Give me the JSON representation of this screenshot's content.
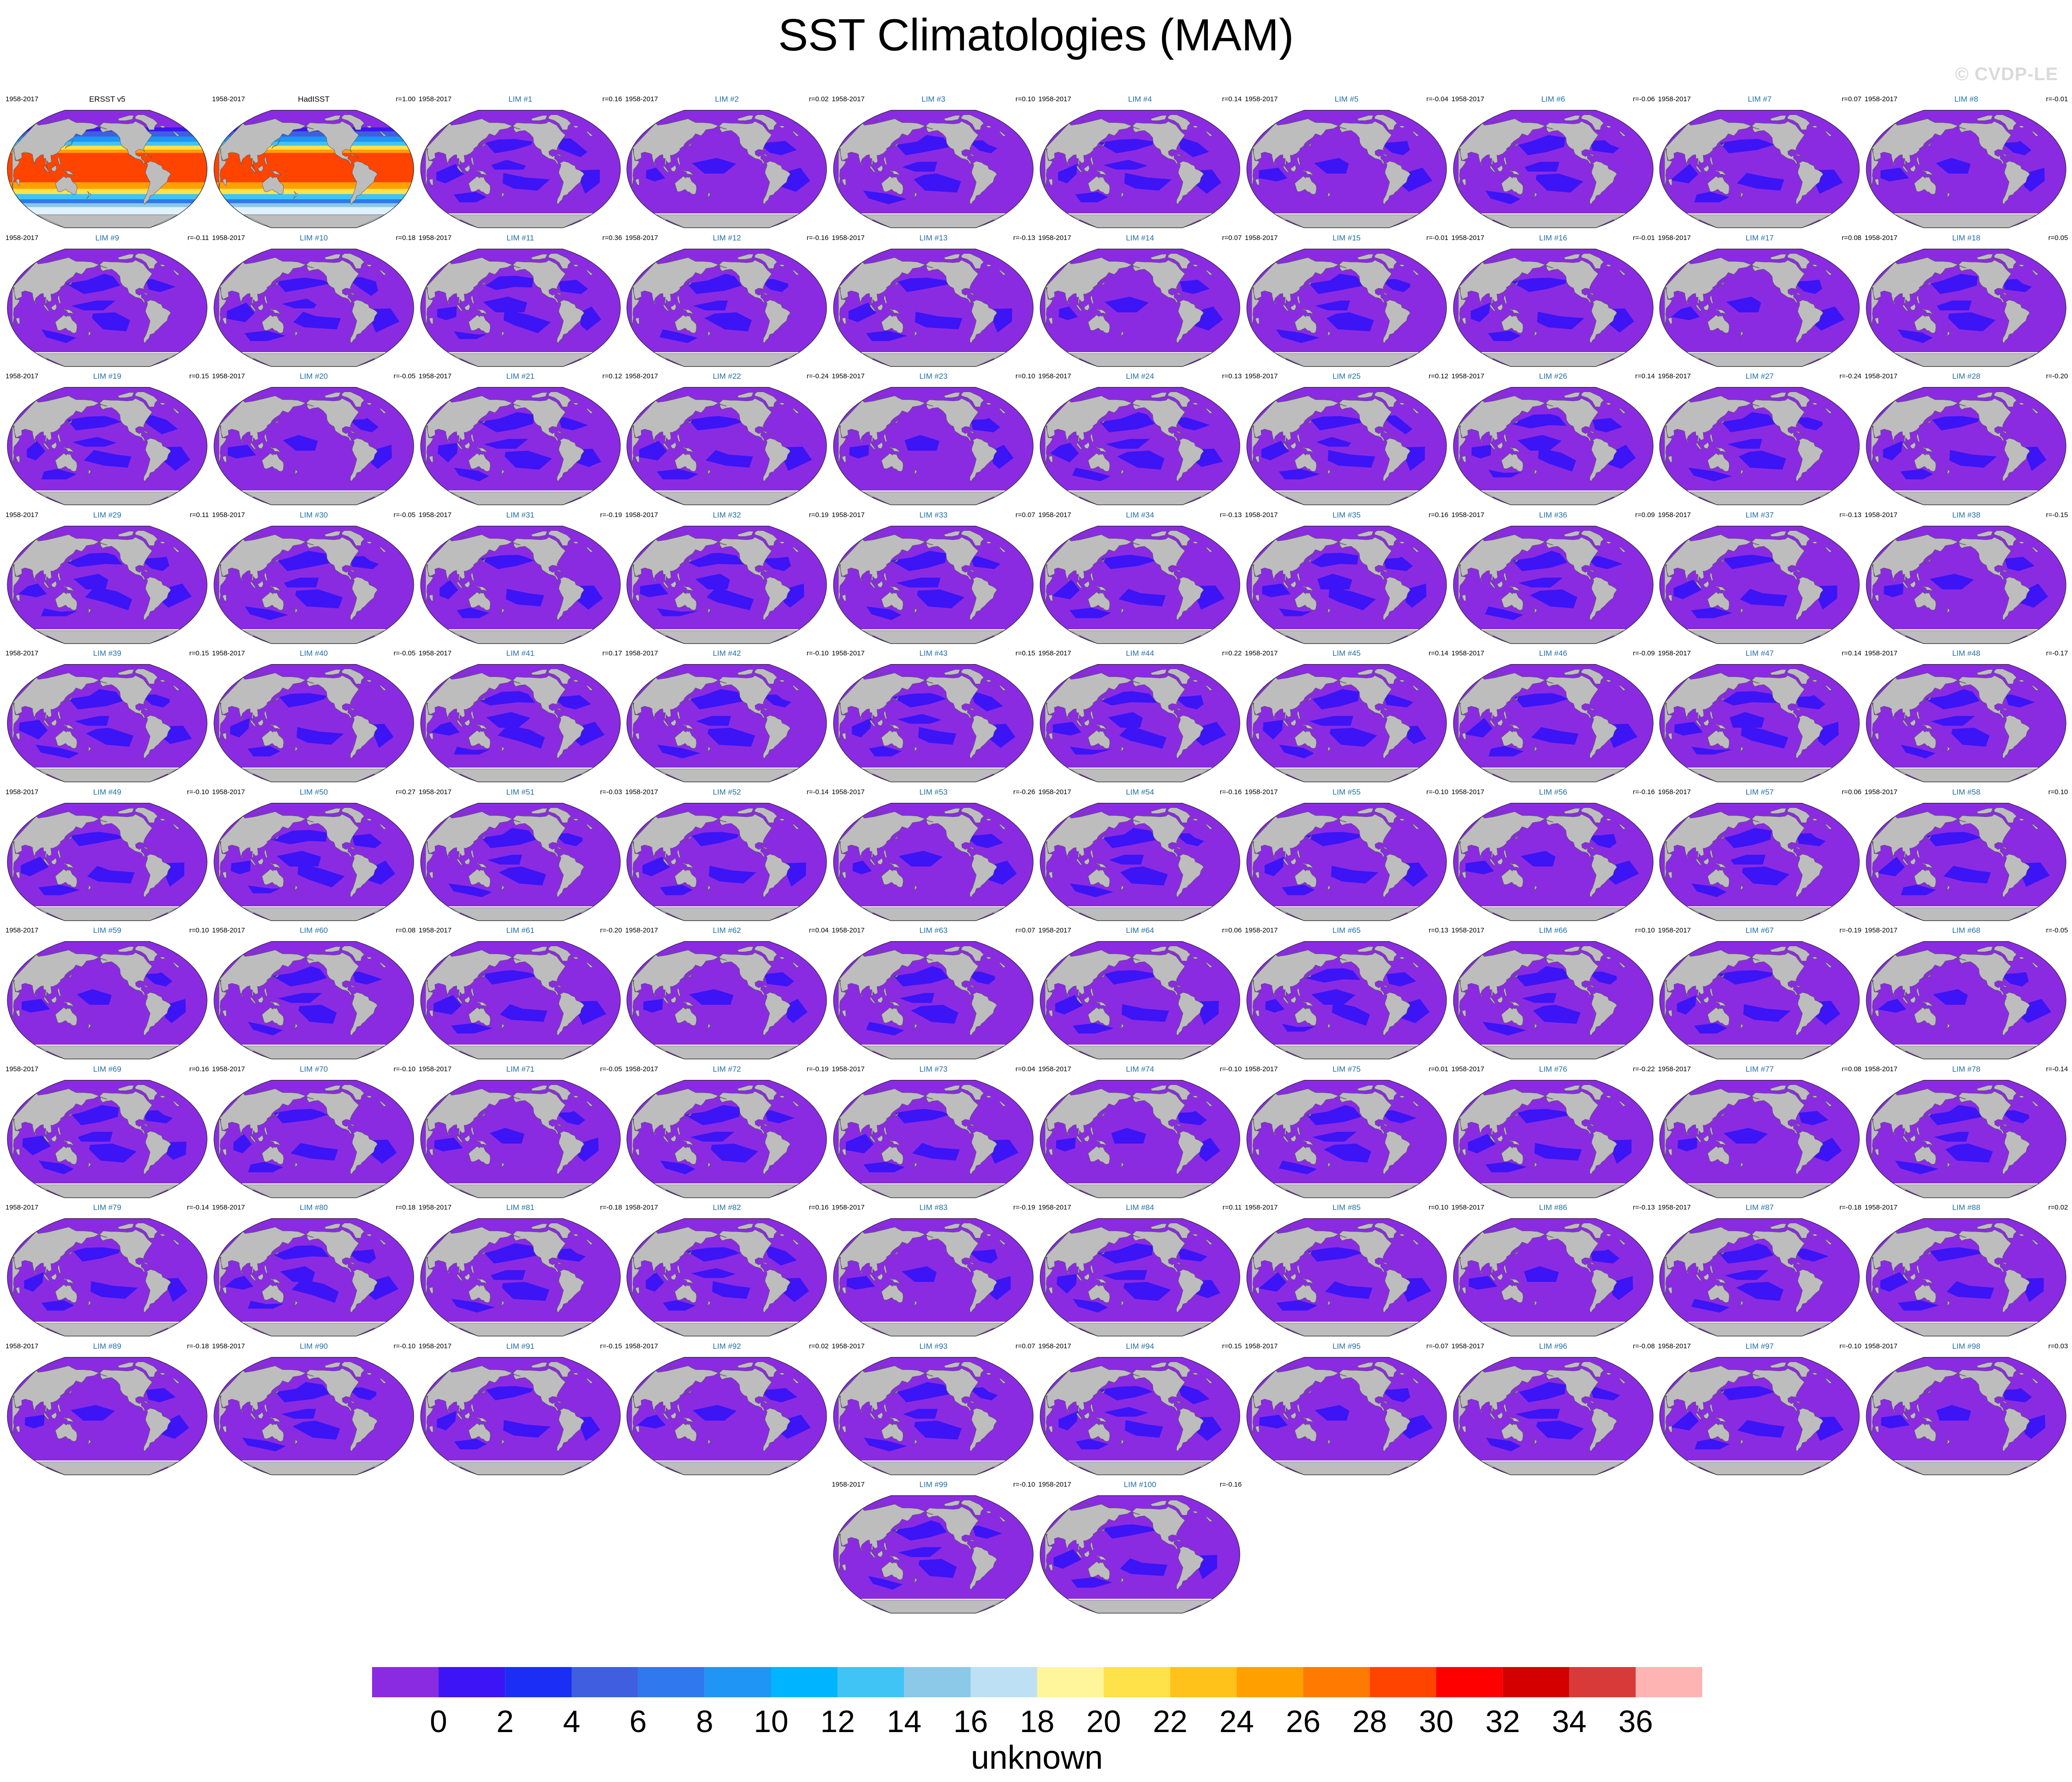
{
  "title": "SST Climatologies (MAM)",
  "copyright": "© CVDP-LE",
  "colors": {
    "ocean_low": "#8a2be2",
    "ocean_mid": "#3c14f5",
    "land": "#bdbdbd",
    "observed_title": "#000000",
    "model_title": "#1f6fa5"
  },
  "chart_data": {
    "type": "heatmap",
    "projection": "robinson",
    "variable": "SST",
    "season": "MAM",
    "panels": [
      {
        "title": "ERSST v5",
        "period": "1958-2017",
        "r": "",
        "kind": "observed"
      },
      {
        "title": "HadISST",
        "period": "1958-2017",
        "r": "r=1.00",
        "kind": "observed"
      },
      {
        "title": "LIM #1",
        "period": "1958-2017",
        "r": "r=0.16",
        "kind": "model"
      },
      {
        "title": "LIM #2",
        "period": "1958-2017",
        "r": "r=0.02",
        "kind": "model"
      },
      {
        "title": "LIM #3",
        "period": "1958-2017",
        "r": "r=0.10",
        "kind": "model"
      },
      {
        "title": "LIM #4",
        "period": "1958-2017",
        "r": "r=0.14",
        "kind": "model"
      },
      {
        "title": "LIM #5",
        "period": "1958-2017",
        "r": "r=-0.04",
        "kind": "model"
      },
      {
        "title": "LIM #6",
        "period": "1958-2017",
        "r": "r=-0.06",
        "kind": "model"
      },
      {
        "title": "LIM #7",
        "period": "1958-2017",
        "r": "r=0.07",
        "kind": "model"
      },
      {
        "title": "LIM #8",
        "period": "1958-2017",
        "r": "r=-0.01",
        "kind": "model"
      },
      {
        "title": "LIM #9",
        "period": "1958-2017",
        "r": "r=-0.11",
        "kind": "model"
      },
      {
        "title": "LIM #10",
        "period": "1958-2017",
        "r": "r=0.18",
        "kind": "model"
      },
      {
        "title": "LIM #11",
        "period": "1958-2017",
        "r": "r=0.36",
        "kind": "model"
      },
      {
        "title": "LIM #12",
        "period": "1958-2017",
        "r": "r=-0.16",
        "kind": "model"
      },
      {
        "title": "LIM #13",
        "period": "1958-2017",
        "r": "r=-0.13",
        "kind": "model"
      },
      {
        "title": "LIM #14",
        "period": "1958-2017",
        "r": "r=0.07",
        "kind": "model"
      },
      {
        "title": "LIM #15",
        "period": "1958-2017",
        "r": "r=-0.01",
        "kind": "model"
      },
      {
        "title": "LIM #16",
        "period": "1958-2017",
        "r": "r=-0.01",
        "kind": "model"
      },
      {
        "title": "LIM #17",
        "period": "1958-2017",
        "r": "r=0.08",
        "kind": "model"
      },
      {
        "title": "LIM #18",
        "period": "1958-2017",
        "r": "r=0.05",
        "kind": "model"
      },
      {
        "title": "LIM #19",
        "period": "1958-2017",
        "r": "r=0.15",
        "kind": "model"
      },
      {
        "title": "LIM #20",
        "period": "1958-2017",
        "r": "r=-0.05",
        "kind": "model"
      },
      {
        "title": "LIM #21",
        "period": "1958-2017",
        "r": "r=0.12",
        "kind": "model"
      },
      {
        "title": "LIM #22",
        "period": "1958-2017",
        "r": "r=-0.24",
        "kind": "model"
      },
      {
        "title": "LIM #23",
        "period": "1958-2017",
        "r": "r=0.10",
        "kind": "model"
      },
      {
        "title": "LIM #24",
        "period": "1958-2017",
        "r": "r=0.13",
        "kind": "model"
      },
      {
        "title": "LIM #25",
        "period": "1958-2017",
        "r": "r=0.12",
        "kind": "model"
      },
      {
        "title": "LIM #26",
        "period": "1958-2017",
        "r": "r=0.14",
        "kind": "model"
      },
      {
        "title": "LIM #27",
        "period": "1958-2017",
        "r": "r=-0.24",
        "kind": "model"
      },
      {
        "title": "LIM #28",
        "period": "1958-2017",
        "r": "r=-0.20",
        "kind": "model"
      },
      {
        "title": "LIM #29",
        "period": "1958-2017",
        "r": "r=0.11",
        "kind": "model"
      },
      {
        "title": "LIM #30",
        "period": "1958-2017",
        "r": "r=-0.05",
        "kind": "model"
      },
      {
        "title": "LIM #31",
        "period": "1958-2017",
        "r": "r=-0.19",
        "kind": "model"
      },
      {
        "title": "LIM #32",
        "period": "1958-2017",
        "r": "r=0.19",
        "kind": "model"
      },
      {
        "title": "LIM #33",
        "period": "1958-2017",
        "r": "r=0.07",
        "kind": "model"
      },
      {
        "title": "LIM #34",
        "period": "1958-2017",
        "r": "r=-0.13",
        "kind": "model"
      },
      {
        "title": "LIM #35",
        "period": "1958-2017",
        "r": "r=0.16",
        "kind": "model"
      },
      {
        "title": "LIM #36",
        "period": "1958-2017",
        "r": "r=0.09",
        "kind": "model"
      },
      {
        "title": "LIM #37",
        "period": "1958-2017",
        "r": "r=-0.13",
        "kind": "model"
      },
      {
        "title": "LIM #38",
        "period": "1958-2017",
        "r": "r=-0.15",
        "kind": "model"
      },
      {
        "title": "LIM #39",
        "period": "1958-2017",
        "r": "r=0.15",
        "kind": "model"
      },
      {
        "title": "LIM #40",
        "period": "1958-2017",
        "r": "r=-0.05",
        "kind": "model"
      },
      {
        "title": "LIM #41",
        "period": "1958-2017",
        "r": "r=0.17",
        "kind": "model"
      },
      {
        "title": "LIM #42",
        "period": "1958-2017",
        "r": "r=-0.10",
        "kind": "model"
      },
      {
        "title": "LIM #43",
        "period": "1958-2017",
        "r": "r=0.15",
        "kind": "model"
      },
      {
        "title": "LIM #44",
        "period": "1958-2017",
        "r": "r=0.22",
        "kind": "model"
      },
      {
        "title": "LIM #45",
        "period": "1958-2017",
        "r": "r=0.14",
        "kind": "model"
      },
      {
        "title": "LIM #46",
        "period": "1958-2017",
        "r": "r=-0.09",
        "kind": "model"
      },
      {
        "title": "LIM #47",
        "period": "1958-2017",
        "r": "r=0.14",
        "kind": "model"
      },
      {
        "title": "LIM #48",
        "period": "1958-2017",
        "r": "r=-0.17",
        "kind": "model"
      },
      {
        "title": "LIM #49",
        "period": "1958-2017",
        "r": "r=-0.10",
        "kind": "model"
      },
      {
        "title": "LIM #50",
        "period": "1958-2017",
        "r": "r=0.27",
        "kind": "model"
      },
      {
        "title": "LIM #51",
        "period": "1958-2017",
        "r": "r=-0.03",
        "kind": "model"
      },
      {
        "title": "LIM #52",
        "period": "1958-2017",
        "r": "r=-0.14",
        "kind": "model"
      },
      {
        "title": "LIM #53",
        "period": "1958-2017",
        "r": "r=-0.26",
        "kind": "model"
      },
      {
        "title": "LIM #54",
        "period": "1958-2017",
        "r": "r=-0.16",
        "kind": "model"
      },
      {
        "title": "LIM #55",
        "period": "1958-2017",
        "r": "r=-0.10",
        "kind": "model"
      },
      {
        "title": "LIM #56",
        "period": "1958-2017",
        "r": "r=-0.16",
        "kind": "model"
      },
      {
        "title": "LIM #57",
        "period": "1958-2017",
        "r": "r=0.06",
        "kind": "model"
      },
      {
        "title": "LIM #58",
        "period": "1958-2017",
        "r": "r=0.10",
        "kind": "model"
      },
      {
        "title": "LIM #59",
        "period": "1958-2017",
        "r": "r=0.10",
        "kind": "model"
      },
      {
        "title": "LIM #60",
        "period": "1958-2017",
        "r": "r=0.08",
        "kind": "model"
      },
      {
        "title": "LIM #61",
        "period": "1958-2017",
        "r": "r=-0.20",
        "kind": "model"
      },
      {
        "title": "LIM #62",
        "period": "1958-2017",
        "r": "r=0.04",
        "kind": "model"
      },
      {
        "title": "LIM #63",
        "period": "1958-2017",
        "r": "r=0.07",
        "kind": "model"
      },
      {
        "title": "LIM #64",
        "period": "1958-2017",
        "r": "r=0.06",
        "kind": "model"
      },
      {
        "title": "LIM #65",
        "period": "1958-2017",
        "r": "r=0.13",
        "kind": "model"
      },
      {
        "title": "LIM #66",
        "period": "1958-2017",
        "r": "r=0.10",
        "kind": "model"
      },
      {
        "title": "LIM #67",
        "period": "1958-2017",
        "r": "r=-0.19",
        "kind": "model"
      },
      {
        "title": "LIM #68",
        "period": "1958-2017",
        "r": "r=-0.05",
        "kind": "model"
      },
      {
        "title": "LIM #69",
        "period": "1958-2017",
        "r": "r=0.16",
        "kind": "model"
      },
      {
        "title": "LIM #70",
        "period": "1958-2017",
        "r": "r=-0.10",
        "kind": "model"
      },
      {
        "title": "LIM #71",
        "period": "1958-2017",
        "r": "r=-0.05",
        "kind": "model"
      },
      {
        "title": "LIM #72",
        "period": "1958-2017",
        "r": "r=-0.19",
        "kind": "model"
      },
      {
        "title": "LIM #73",
        "period": "1958-2017",
        "r": "r=0.04",
        "kind": "model"
      },
      {
        "title": "LIM #74",
        "period": "1958-2017",
        "r": "r=-0.10",
        "kind": "model"
      },
      {
        "title": "LIM #75",
        "period": "1958-2017",
        "r": "r=0.01",
        "kind": "model"
      },
      {
        "title": "LIM #76",
        "period": "1958-2017",
        "r": "r=-0.22",
        "kind": "model"
      },
      {
        "title": "LIM #77",
        "period": "1958-2017",
        "r": "r=0.08",
        "kind": "model"
      },
      {
        "title": "LIM #78",
        "period": "1958-2017",
        "r": "r=-0.14",
        "kind": "model"
      },
      {
        "title": "LIM #79",
        "period": "1958-2017",
        "r": "r=-0.14",
        "kind": "model"
      },
      {
        "title": "LIM #80",
        "period": "1958-2017",
        "r": "r=0.18",
        "kind": "model"
      },
      {
        "title": "LIM #81",
        "period": "1958-2017",
        "r": "r=-0.18",
        "kind": "model"
      },
      {
        "title": "LIM #82",
        "period": "1958-2017",
        "r": "r=0.16",
        "kind": "model"
      },
      {
        "title": "LIM #83",
        "period": "1958-2017",
        "r": "r=-0.19",
        "kind": "model"
      },
      {
        "title": "LIM #84",
        "period": "1958-2017",
        "r": "r=0.11",
        "kind": "model"
      },
      {
        "title": "LIM #85",
        "period": "1958-2017",
        "r": "r=0.10",
        "kind": "model"
      },
      {
        "title": "LIM #86",
        "period": "1958-2017",
        "r": "r=-0.13",
        "kind": "model"
      },
      {
        "title": "LIM #87",
        "period": "1958-2017",
        "r": "r=-0.18",
        "kind": "model"
      },
      {
        "title": "LIM #88",
        "period": "1958-2017",
        "r": "r=0.02",
        "kind": "model"
      },
      {
        "title": "LIM #89",
        "period": "1958-2017",
        "r": "r=-0.18",
        "kind": "model"
      },
      {
        "title": "LIM #90",
        "period": "1958-2017",
        "r": "r=-0.10",
        "kind": "model"
      },
      {
        "title": "LIM #91",
        "period": "1958-2017",
        "r": "r=-0.15",
        "kind": "model"
      },
      {
        "title": "LIM #92",
        "period": "1958-2017",
        "r": "r=0.02",
        "kind": "model"
      },
      {
        "title": "LIM #93",
        "period": "1958-2017",
        "r": "r=0.07",
        "kind": "model"
      },
      {
        "title": "LIM #94",
        "period": "1958-2017",
        "r": "r=0.15",
        "kind": "model"
      },
      {
        "title": "LIM #95",
        "period": "1958-2017",
        "r": "r=-0.07",
        "kind": "model"
      },
      {
        "title": "LIM #96",
        "period": "1958-2017",
        "r": "r=-0.08",
        "kind": "model"
      },
      {
        "title": "LIM #97",
        "period": "1958-2017",
        "r": "r=-0.10",
        "kind": "model"
      },
      {
        "title": "LIM #98",
        "period": "1958-2017",
        "r": "r=0.03",
        "kind": "model"
      },
      {
        "title": "LIM #99",
        "period": "1958-2017",
        "r": "r=-0.10",
        "kind": "model"
      },
      {
        "title": "LIM #100",
        "period": "1958-2017",
        "r": "r=-0.16",
        "kind": "model"
      }
    ],
    "colorbar": {
      "levels": [
        0,
        2,
        4,
        6,
        8,
        10,
        12,
        14,
        16,
        18,
        20,
        22,
        24,
        26,
        28,
        30,
        32,
        34,
        36
      ],
      "colors": [
        "#8a2be2",
        "#3c14f5",
        "#1a2ef5",
        "#3f5fe0",
        "#2f78ee",
        "#1f96f5",
        "#00b4ff",
        "#40c4f5",
        "#8cc8e8",
        "#bde0f5",
        "#fff59a",
        "#ffe14a",
        "#ffc21a",
        "#ffa000",
        "#ff7a00",
        "#ff4400",
        "#ff0000",
        "#d40000",
        "#d83a3a",
        "#ffb4b4"
      ],
      "label": "unknown"
    }
  }
}
